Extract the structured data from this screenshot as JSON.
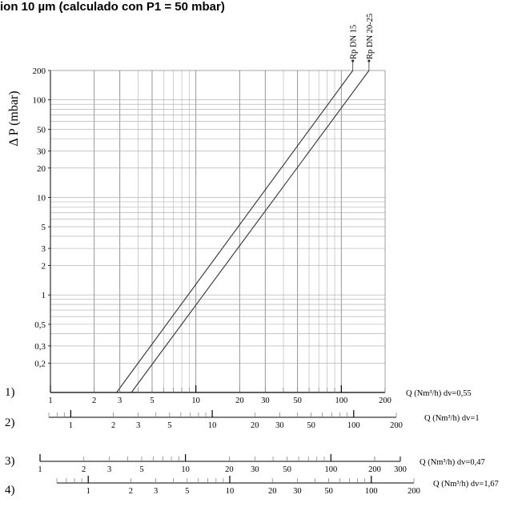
{
  "title": "ion 10 µm (calculado con P1 = 50 mbar)",
  "chart_data": {
    "type": "line",
    "log_x": true,
    "log_y": true,
    "ylabel": "Δ P (mbar)",
    "xlim": [
      1,
      200
    ],
    "ylim": [
      0.1,
      200
    ],
    "grid": true,
    "y_ticks": [
      0.2,
      0.3,
      0.5,
      1,
      2,
      3,
      5,
      10,
      20,
      30,
      50,
      100,
      200
    ],
    "y_tick_labels": [
      "0,2",
      "0,3",
      "0,5",
      "1",
      "2",
      "3",
      "5",
      "10",
      "20",
      "30",
      "50",
      "100",
      "200"
    ],
    "series": [
      {
        "name": "Rp DN 15",
        "x": [
          2.85,
          120
        ],
        "y": [
          0.1,
          200
        ]
      },
      {
        "name": "Rp DN 20-25",
        "x": [
          3.6,
          155
        ],
        "y": [
          0.1,
          200
        ]
      }
    ],
    "scales": [
      {
        "index": "1)",
        "label": "Q (Nm³/h)",
        "dv": "dv=0,55",
        "tick_labels": [
          "1",
          "2",
          "3",
          "5",
          "10",
          "20",
          "30",
          "50",
          "100",
          "200"
        ]
      },
      {
        "index": "2)",
        "label": "Q (Nm³/h)",
        "dv": "dv=1",
        "tick_labels": [
          "1",
          "2",
          "3",
          "5",
          "10",
          "20",
          "30",
          "50",
          "100",
          "200"
        ]
      },
      {
        "index": "3)",
        "label": "Q (Nm³/h)",
        "dv": "dv=0,47",
        "tick_labels": [
          "1",
          "2",
          "3",
          "5",
          "10",
          "20",
          "30",
          "50",
          "100",
          "200",
          "300"
        ]
      },
      {
        "index": "4)",
        "label": "Q (Nm³/h)",
        "dv": "dv=1,67",
        "tick_labels": [
          "1",
          "2",
          "3",
          "5",
          "10",
          "20",
          "30",
          "50",
          "100",
          "200"
        ]
      }
    ]
  }
}
